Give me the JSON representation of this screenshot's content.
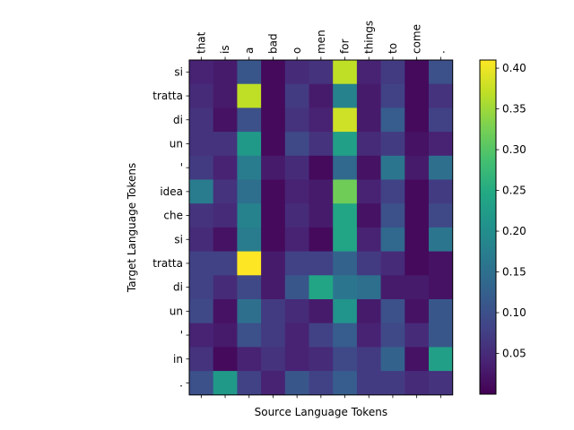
{
  "chart_data": {
    "type": "heatmap",
    "title": "",
    "xlabel": "Source Language Tokens",
    "ylabel": "Target Language Tokens",
    "x_tokens": [
      "that",
      "is",
      "a",
      "bad",
      "o",
      "men",
      "for",
      "things",
      "to",
      "come",
      "."
    ],
    "y_tokens": [
      "si",
      "tratta",
      "di",
      "un",
      "'",
      "idea",
      "che",
      "si",
      "tratta",
      "di",
      "un",
      "'",
      "in",
      "."
    ],
    "colormap": "viridis",
    "vmin": 0.0,
    "vmax": 0.41,
    "colorbar_ticks": [
      "0.05",
      "0.10",
      "0.15",
      "0.20",
      "0.25",
      "0.30",
      "0.35",
      "0.40"
    ],
    "values": [
      [
        0.04,
        0.03,
        0.11,
        0.01,
        0.05,
        0.06,
        0.37,
        0.04,
        0.07,
        0.01,
        0.1
      ],
      [
        0.05,
        0.03,
        0.37,
        0.01,
        0.07,
        0.03,
        0.18,
        0.03,
        0.08,
        0.01,
        0.06
      ],
      [
        0.06,
        0.02,
        0.1,
        0.01,
        0.06,
        0.04,
        0.38,
        0.03,
        0.12,
        0.01,
        0.08
      ],
      [
        0.06,
        0.06,
        0.22,
        0.01,
        0.09,
        0.06,
        0.23,
        0.05,
        0.07,
        0.02,
        0.04
      ],
      [
        0.07,
        0.04,
        0.17,
        0.03,
        0.05,
        0.01,
        0.14,
        0.02,
        0.16,
        0.03,
        0.15
      ],
      [
        0.17,
        0.06,
        0.15,
        0.01,
        0.04,
        0.03,
        0.32,
        0.04,
        0.08,
        0.01,
        0.07
      ],
      [
        0.06,
        0.05,
        0.18,
        0.01,
        0.05,
        0.03,
        0.24,
        0.02,
        0.1,
        0.01,
        0.09
      ],
      [
        0.05,
        0.02,
        0.17,
        0.01,
        0.04,
        0.01,
        0.24,
        0.04,
        0.14,
        0.01,
        0.16
      ],
      [
        0.08,
        0.08,
        0.41,
        0.03,
        0.08,
        0.08,
        0.13,
        0.07,
        0.05,
        0.01,
        0.02
      ],
      [
        0.08,
        0.05,
        0.09,
        0.03,
        0.11,
        0.24,
        0.16,
        0.15,
        0.03,
        0.03,
        0.02
      ],
      [
        0.09,
        0.02,
        0.15,
        0.07,
        0.05,
        0.03,
        0.21,
        0.03,
        0.1,
        0.02,
        0.11
      ],
      [
        0.04,
        0.03,
        0.1,
        0.07,
        0.04,
        0.08,
        0.12,
        0.04,
        0.09,
        0.05,
        0.11
      ],
      [
        0.06,
        0.01,
        0.04,
        0.06,
        0.04,
        0.05,
        0.09,
        0.07,
        0.13,
        0.02,
        0.23
      ],
      [
        0.1,
        0.22,
        0.08,
        0.04,
        0.11,
        0.08,
        0.12,
        0.07,
        0.07,
        0.05,
        0.06
      ]
    ]
  }
}
